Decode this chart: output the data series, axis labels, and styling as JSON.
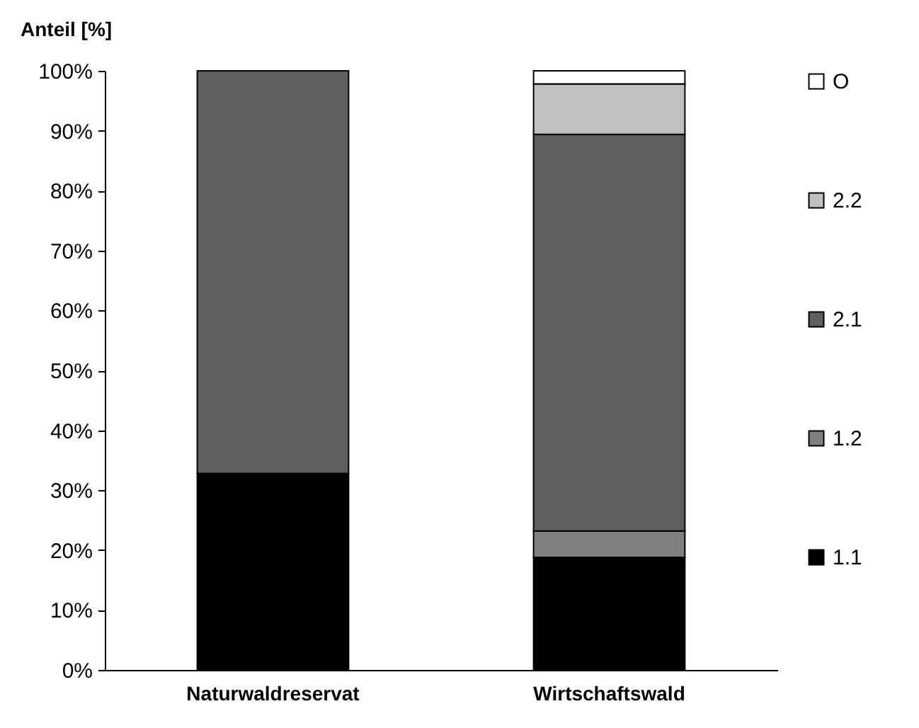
{
  "chart_data": {
    "type": "bar",
    "stacked": true,
    "ylabel": "Anteil [%]",
    "categories": [
      "Naturwaldreservat",
      "Wirtschaftswald"
    ],
    "series": [
      {
        "name": "1.1",
        "color": "#000000",
        "values": [
          32.8,
          18.8
        ]
      },
      {
        "name": "1.2",
        "color": "#808080",
        "values": [
          null,
          4.4
        ]
      },
      {
        "name": "2.1",
        "color": "#5f5f5f",
        "values": [
          67.2,
          66.2
        ]
      },
      {
        "name": "2.2",
        "color": "#c0c0c0",
        "values": [
          null,
          8.4
        ]
      },
      {
        "name": "O",
        "color": "#ffffff",
        "values": [
          null,
          2.2
        ]
      }
    ],
    "ylim": [
      0,
      100
    ],
    "yticks": [
      {
        "value": 0,
        "label": "0%"
      },
      {
        "value": 10,
        "label": "10%"
      },
      {
        "value": 20,
        "label": "20%"
      },
      {
        "value": 30,
        "label": "30%"
      },
      {
        "value": 40,
        "label": "40%"
      },
      {
        "value": 50,
        "label": "50%"
      },
      {
        "value": 60,
        "label": "60%"
      },
      {
        "value": 70,
        "label": "70%"
      },
      {
        "value": 80,
        "label": "80%"
      },
      {
        "value": 90,
        "label": "90%"
      },
      {
        "value": 100,
        "label": "100%"
      }
    ],
    "legend": "right"
  }
}
